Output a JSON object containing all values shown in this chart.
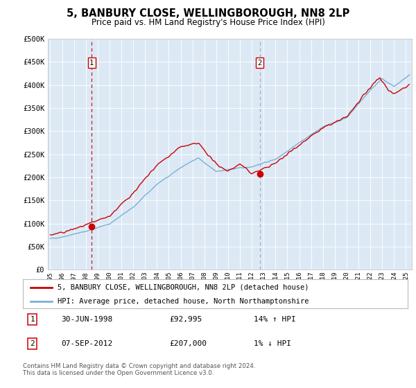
{
  "title": "5, BANBURY CLOSE, WELLINGBOROUGH, NN8 2LP",
  "subtitle": "Price paid vs. HM Land Registry's House Price Index (HPI)",
  "background_color": "#dce9f5",
  "plot_bg_color": "#dce9f5",
  "ylim": [
    0,
    500000
  ],
  "yticks": [
    0,
    50000,
    100000,
    150000,
    200000,
    250000,
    300000,
    350000,
    400000,
    450000,
    500000
  ],
  "ytick_labels": [
    "£0",
    "£50K",
    "£100K",
    "£150K",
    "£200K",
    "£250K",
    "£300K",
    "£350K",
    "£400K",
    "£450K",
    "£500K"
  ],
  "sale1_date": 1998.5,
  "sale1_price": 92995,
  "sale2_date": 2012.67,
  "sale2_price": 207000,
  "legend_label_red": "5, BANBURY CLOSE, WELLINGBOROUGH, NN8 2LP (detached house)",
  "legend_label_blue": "HPI: Average price, detached house, North Northamptonshire",
  "annotation1_date": "30-JUN-1998",
  "annotation1_price": "£92,995",
  "annotation1_hpi": "14% ↑ HPI",
  "annotation2_date": "07-SEP-2012",
  "annotation2_price": "£207,000",
  "annotation2_hpi": "1% ↓ HPI",
  "footer": "Contains HM Land Registry data © Crown copyright and database right 2024.\nThis data is licensed under the Open Government Licence v3.0.",
  "red_color": "#cc0000",
  "blue_color": "#7ab0d4",
  "dashed_color": "#cc0000",
  "dashed_color2": "#8899aa"
}
